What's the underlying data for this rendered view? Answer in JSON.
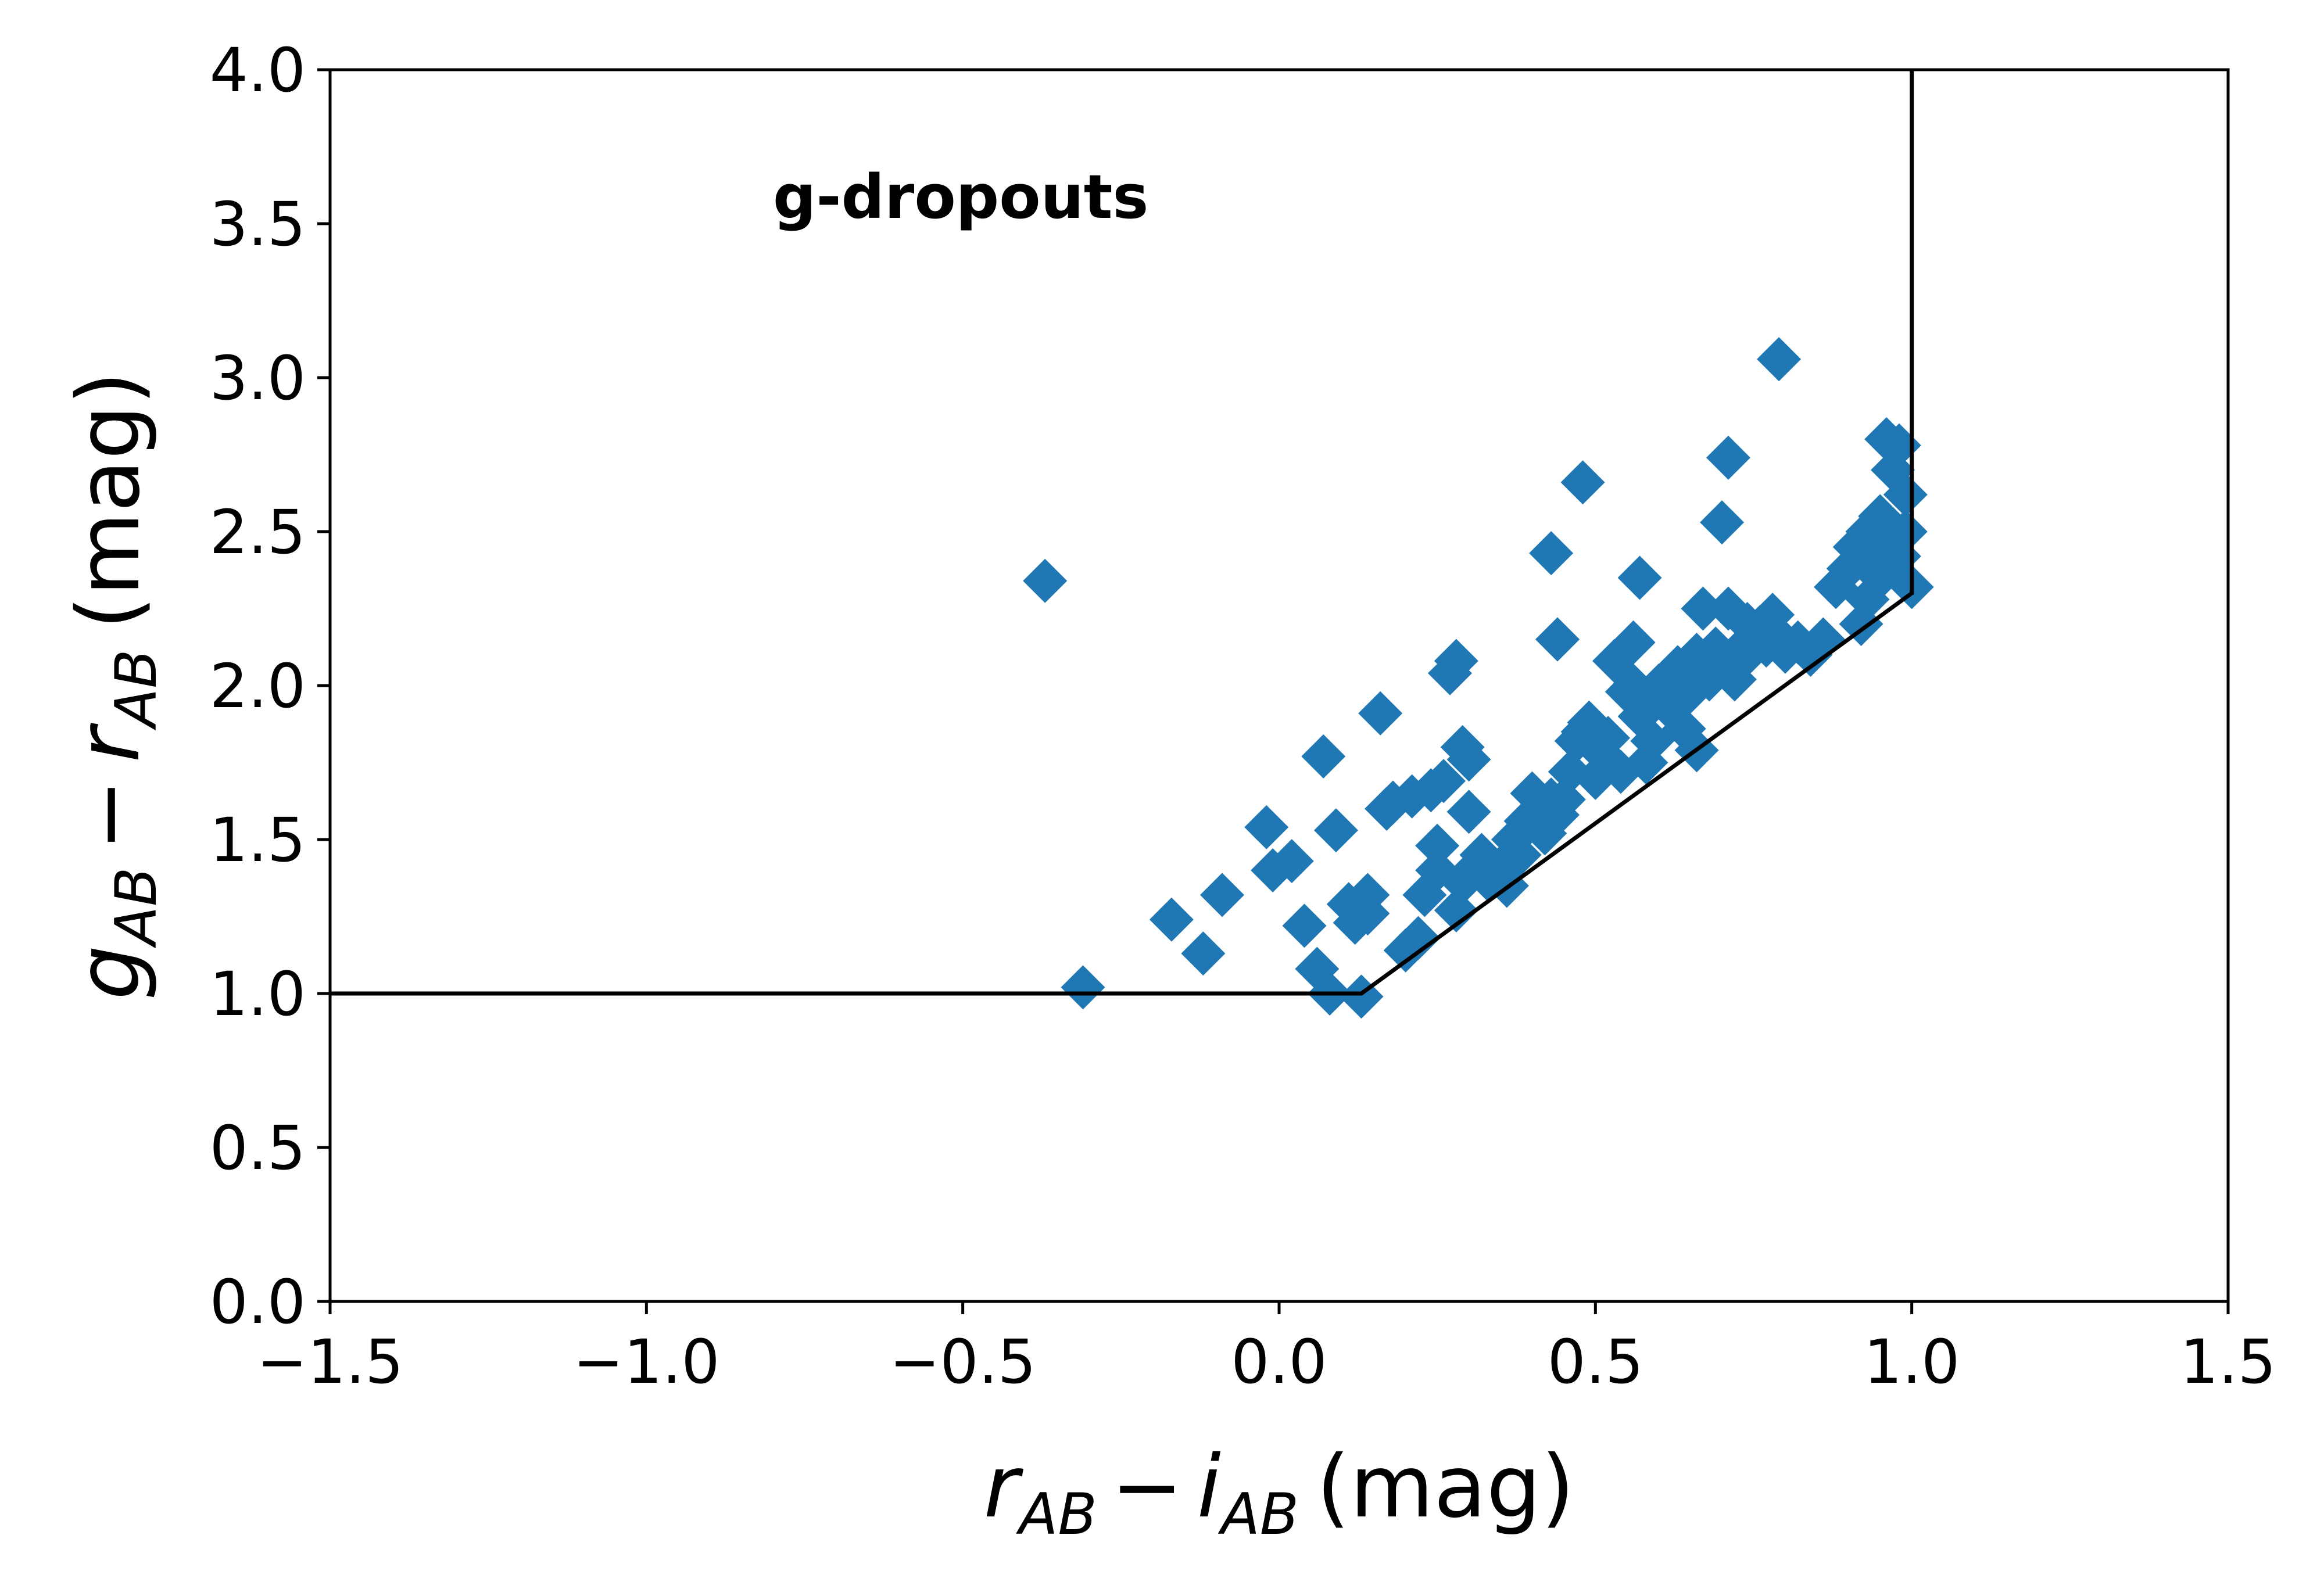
{
  "chart_data": {
    "type": "scatter",
    "title": "",
    "xlabel": {
      "base1": "r",
      "sub1": "AB",
      "op": "−",
      "base2": "i",
      "sub2": "AB",
      "unit": "(mag)"
    },
    "ylabel": {
      "base1": "g",
      "sub1": "AB",
      "op": "−",
      "base2": "r",
      "sub2": "AB",
      "unit": "(mag)"
    },
    "xlim": [
      -1.5,
      1.5
    ],
    "ylim": [
      0.0,
      4.0
    ],
    "xticks": [
      -1.5,
      -1.0,
      -0.5,
      0.0,
      0.5,
      1.0,
      1.5
    ],
    "xtick_labels": [
      "−1.5",
      "−1.0",
      "−0.5",
      "0.0",
      "0.5",
      "1.0",
      "1.5"
    ],
    "yticks": [
      0.0,
      0.5,
      1.0,
      1.5,
      2.0,
      2.5,
      3.0,
      3.5,
      4.0
    ],
    "ytick_labels": [
      "0.0",
      "0.5",
      "1.0",
      "1.5",
      "2.0",
      "2.5",
      "3.0",
      "3.5",
      "4.0"
    ],
    "grid": false,
    "legend": "none",
    "annotation": "g-dropouts",
    "colors": {
      "points": "#1f77b4",
      "boundary": "#000000"
    },
    "marker": "diamond",
    "selection_boundary": {
      "x": [
        -1.5,
        0.13,
        1.0,
        1.0
      ],
      "y": [
        1.0,
        1.0,
        2.3,
        4.0
      ]
    },
    "series": [
      {
        "x": [
          -0.37,
          -0.31,
          -0.17,
          -0.12,
          -0.09,
          -0.02,
          -0.01,
          0.02,
          0.04,
          0.06,
          0.07,
          0.08,
          0.09,
          0.11,
          0.12,
          0.13,
          0.14,
          0.14,
          0.16,
          0.17,
          0.18,
          0.2,
          0.21,
          0.22,
          0.23,
          0.24,
          0.25,
          0.25,
          0.26,
          0.27,
          0.28,
          0.28,
          0.29,
          0.29,
          0.3,
          0.3,
          0.31,
          0.32,
          0.33,
          0.35,
          0.36,
          0.37,
          0.38,
          0.39,
          0.4,
          0.41,
          0.42,
          0.43,
          0.44,
          0.44,
          0.45,
          0.46,
          0.47,
          0.48,
          0.49,
          0.5,
          0.51,
          0.52,
          0.53,
          0.54,
          0.55,
          0.56,
          0.57,
          0.58,
          0.58,
          0.59,
          0.6,
          0.61,
          0.62,
          0.63,
          0.64,
          0.65,
          0.66,
          0.67,
          0.68,
          0.69,
          0.7,
          0.71,
          0.72,
          0.73,
          0.74,
          0.75,
          0.76,
          0.77,
          0.78,
          0.79,
          0.8,
          0.82,
          0.84,
          0.86,
          0.88,
          0.9,
          0.91,
          0.92,
          0.93,
          0.94,
          0.95,
          0.96,
          0.97,
          0.98,
          0.99,
          1.0,
          0.96,
          0.97,
          0.99,
          0.95,
          0.93,
          0.98,
          0.71,
          0.7,
          0.48,
          0.57,
          0.43,
          0.44,
          0.56,
          0.66,
          0.73,
          0.79
        ],
        "y": [
          2.34,
          1.02,
          1.24,
          1.13,
          1.32,
          1.54,
          1.4,
          1.43,
          1.22,
          1.08,
          1.77,
          1.0,
          1.53,
          1.29,
          1.23,
          0.99,
          1.26,
          1.32,
          1.91,
          1.6,
          1.62,
          1.14,
          1.64,
          1.18,
          1.32,
          1.66,
          1.48,
          1.4,
          1.69,
          2.04,
          2.08,
          1.27,
          1.8,
          1.36,
          1.59,
          1.76,
          1.41,
          1.45,
          1.37,
          1.41,
          1.35,
          1.5,
          1.45,
          1.56,
          1.65,
          1.6,
          1.52,
          1.63,
          1.58,
          2.15,
          1.63,
          1.72,
          1.82,
          1.85,
          1.88,
          1.7,
          1.78,
          1.83,
          2.08,
          1.72,
          1.98,
          2.14,
          1.9,
          1.75,
          1.95,
          1.82,
          2.0,
          1.95,
          1.92,
          2.06,
          1.86,
          1.98,
          1.79,
          2.25,
          2.02,
          2.12,
          2.08,
          2.25,
          2.02,
          2.12,
          2.2,
          2.14,
          2.19,
          2.13,
          2.23,
          2.16,
          2.11,
          2.14,
          2.1,
          2.15,
          2.32,
          2.38,
          2.45,
          2.2,
          2.5,
          2.44,
          2.35,
          2.46,
          2.4,
          2.42,
          2.5,
          2.32,
          2.8,
          2.7,
          2.62,
          2.55,
          2.28,
          2.78,
          2.74,
          2.53,
          2.66,
          2.35,
          2.43,
          2.15,
          2.0,
          2.1,
          2.08,
          3.06
        ]
      }
    ]
  }
}
